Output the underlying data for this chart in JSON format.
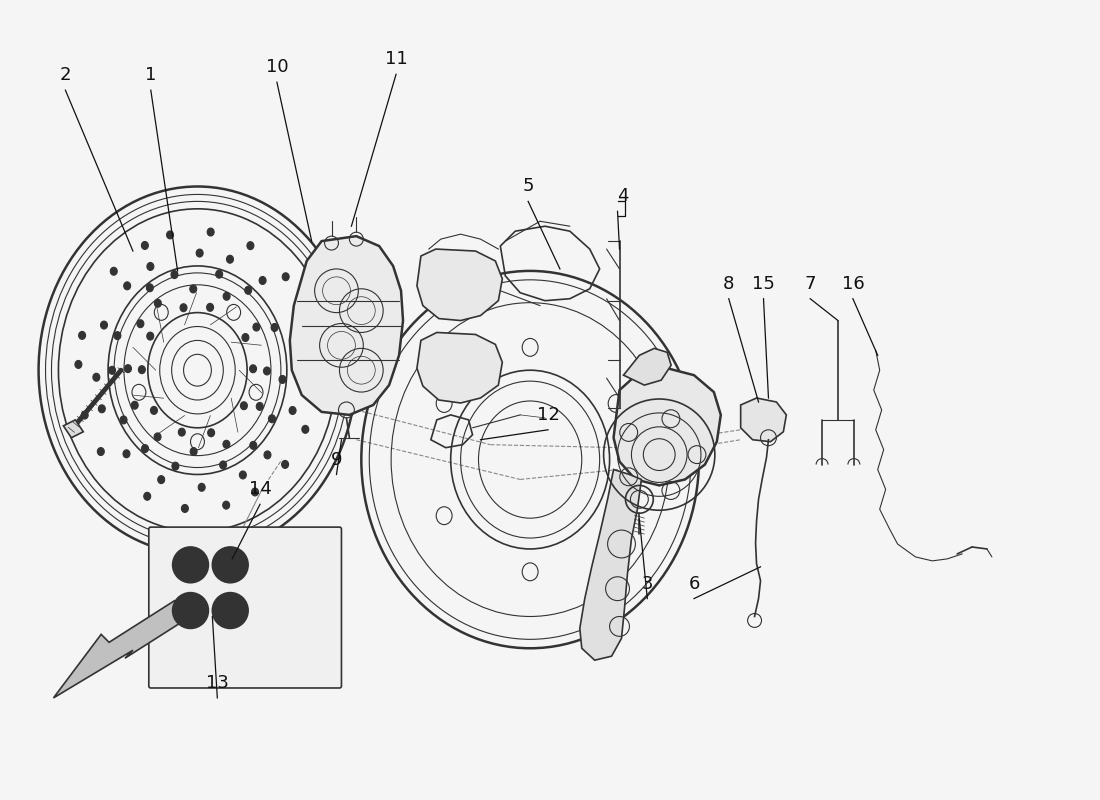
{
  "bg_color": "#f5f5f5",
  "line_color": "#333333",
  "figsize": [
    11.0,
    8.0
  ],
  "dpi": 100
}
